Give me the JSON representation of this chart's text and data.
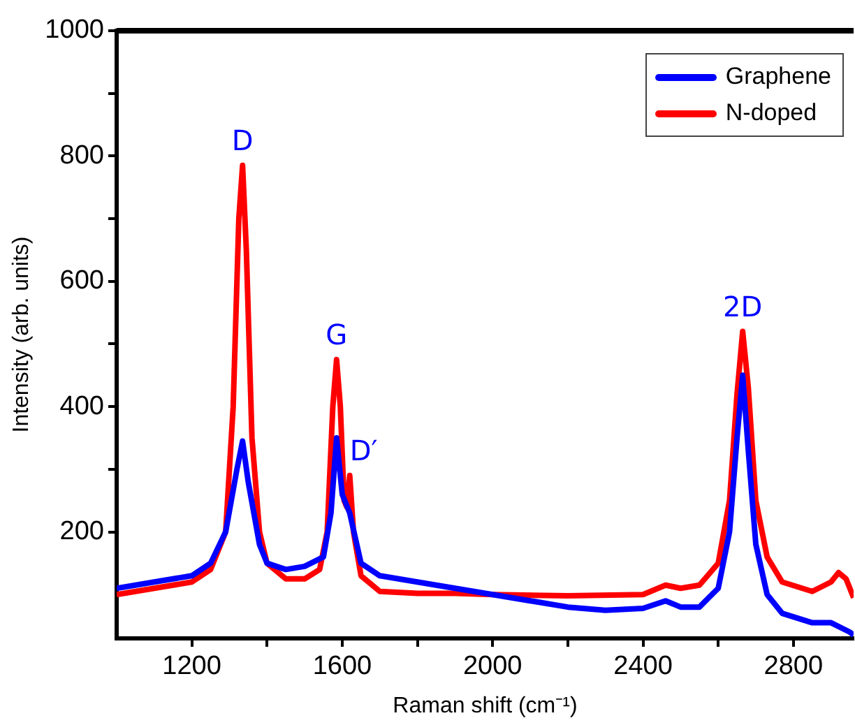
{
  "chart_data": {
    "type": "line",
    "xlabel": "Raman shift (cm⁻¹)",
    "ylabel": "Intensity (arb. units)",
    "xlim": [
      1000,
      2960
    ],
    "ylim": [
      30,
      1000
    ],
    "xticks": [
      1200,
      {
        "value": 1400,
        "label": null
      },
      1600,
      {
        "value": 1800,
        "label": null
      },
      2000,
      {
        "value": 2200,
        "label": null
      },
      2400,
      {
        "value": 2600,
        "label": null
      },
      2800
    ],
    "yticks": [
      200,
      {
        "value": 300,
        "label": null
      },
      400,
      {
        "value": 500,
        "label": null
      },
      600,
      {
        "value": 700,
        "label": null
      },
      800,
      {
        "value": 900,
        "label": null
      },
      1000
    ],
    "grid": false,
    "legend": "top right",
    "marker": "none",
    "line_style": "solid",
    "series": [
      {
        "name": "Graphene",
        "color": "#0000ff",
        "x": [
          1000,
          1100,
          1200,
          1250,
          1290,
          1320,
          1335,
          1350,
          1380,
          1400,
          1450,
          1500,
          1550,
          1570,
          1585,
          1600,
          1620,
          1650,
          1700,
          1800,
          1900,
          2000,
          2100,
          2200,
          2300,
          2400,
          2460,
          2500,
          2550,
          2600,
          2630,
          2650,
          2665,
          2680,
          2700,
          2730,
          2770,
          2850,
          2900,
          2950,
          2960
        ],
        "values": [
          110,
          120,
          130,
          150,
          200,
          300,
          345,
          280,
          180,
          150,
          140,
          145,
          160,
          230,
          350,
          260,
          230,
          150,
          130,
          120,
          110,
          100,
          90,
          80,
          75,
          78,
          90,
          80,
          80,
          110,
          200,
          350,
          450,
          330,
          180,
          100,
          70,
          55,
          55,
          40,
          35
        ]
      },
      {
        "name": "N-doped",
        "color": "#ff0000",
        "x": [
          1000,
          1100,
          1200,
          1250,
          1290,
          1310,
          1325,
          1335,
          1345,
          1360,
          1380,
          1400,
          1450,
          1500,
          1540,
          1560,
          1575,
          1585,
          1595,
          1605,
          1612,
          1620,
          1630,
          1650,
          1700,
          1800,
          1900,
          2000,
          2200,
          2400,
          2460,
          2500,
          2550,
          2600,
          2630,
          2650,
          2665,
          2680,
          2700,
          2730,
          2770,
          2850,
          2900,
          2920,
          2940,
          2960
        ],
        "values": [
          100,
          110,
          120,
          140,
          200,
          400,
          700,
          785,
          650,
          350,
          200,
          150,
          125,
          125,
          140,
          200,
          400,
          475,
          400,
          250,
          240,
          290,
          200,
          130,
          105,
          102,
          102,
          100,
          98,
          100,
          115,
          110,
          115,
          150,
          250,
          420,
          520,
          430,
          250,
          160,
          120,
          105,
          120,
          135,
          125,
          95
        ]
      }
    ],
    "annotations": [
      {
        "text": "D",
        "x": 1335,
        "y": 785
      },
      {
        "text": "G",
        "x": 1585,
        "y": 475
      },
      {
        "text": "D′",
        "x": 1620,
        "y": 290
      },
      {
        "text": "2D",
        "x": 2665,
        "y": 520
      }
    ]
  }
}
